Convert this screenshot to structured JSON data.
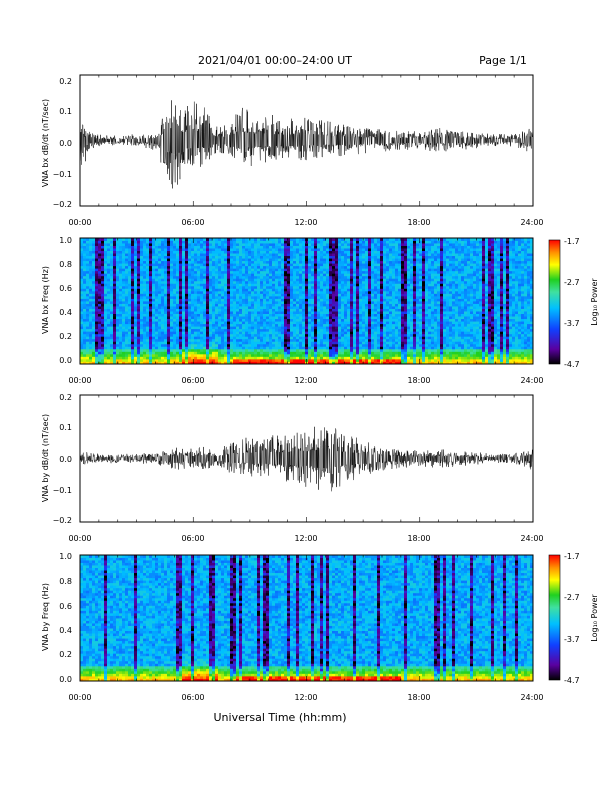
{
  "header": {
    "title": "2021/04/01  00:00–24:00 UT",
    "page": "Page 1/1"
  },
  "xaxis": {
    "label": "Universal Time (hh:mm)",
    "ticks": [
      "00:00",
      "06:00",
      "12:00",
      "18:00",
      "24:00"
    ]
  },
  "colorbar": {
    "label": "Log₁₀ Power",
    "ticks": [
      "-1.7",
      "-2.7",
      "-3.7",
      "-4.7"
    ],
    "range": [
      -4.7,
      -1.7
    ],
    "colormap": [
      "#000000",
      "#5a00a0",
      "#1040ff",
      "#00c0ff",
      "#40e0a0",
      "#20d020",
      "#ffff00",
      "#ff9000",
      "#ff0000"
    ]
  },
  "chart_data": [
    {
      "type": "line",
      "ylabel": "VNA bx dB/dt (nT/sec)",
      "xlim": [
        0,
        24
      ],
      "ylim": [
        -0.2,
        0.2
      ],
      "yticks": [
        "0.2",
        "0.1",
        "0.0",
        "−0.1",
        "−0.2"
      ],
      "envelope": {
        "x": [
          0,
          0.5,
          1,
          2,
          3,
          4,
          4.5,
          5,
          5.5,
          6,
          6.5,
          7,
          7.5,
          8,
          8.5,
          9,
          9.5,
          10,
          11,
          12,
          13,
          14,
          15,
          16,
          17,
          18,
          19,
          20,
          21,
          22,
          23,
          24
        ],
        "upper": [
          0.06,
          0.03,
          0.02,
          0.015,
          0.02,
          0.03,
          0.09,
          0.14,
          0.1,
          0.12,
          0.11,
          0.06,
          0.04,
          0.07,
          0.11,
          0.09,
          0.08,
          0.08,
          0.07,
          0.07,
          0.06,
          0.05,
          0.04,
          0.035,
          0.03,
          0.03,
          0.04,
          0.03,
          0.025,
          0.02,
          0.02,
          0.04
        ],
        "lower": [
          -0.12,
          -0.03,
          -0.02,
          -0.015,
          -0.02,
          -0.03,
          -0.1,
          -0.17,
          -0.1,
          -0.09,
          -0.08,
          -0.05,
          -0.04,
          -0.06,
          -0.1,
          -0.08,
          -0.07,
          -0.07,
          -0.06,
          -0.06,
          -0.05,
          -0.05,
          -0.04,
          -0.035,
          -0.03,
          -0.03,
          -0.035,
          -0.03,
          -0.025,
          -0.02,
          -0.02,
          -0.04
        ]
      }
    },
    {
      "type": "heatmap",
      "ylabel": "VNA bx Freq (Hz)",
      "xlim": [
        0,
        24
      ],
      "ylim": [
        0,
        1.0
      ],
      "yticks": [
        "1.0",
        "0.8",
        "0.6",
        "0.4",
        "0.2",
        "0.0"
      ],
      "z_range": [
        -4.7,
        -1.7
      ]
    },
    {
      "type": "line",
      "ylabel": "VNA by dB/dt (nT/sec)",
      "xlim": [
        0,
        24
      ],
      "ylim": [
        -0.2,
        0.2
      ],
      "yticks": [
        "0.2",
        "0.1",
        "0.0",
        "−0.1",
        "−0.2"
      ],
      "envelope": {
        "x": [
          0,
          0.5,
          1,
          2,
          3,
          4,
          4.5,
          5,
          5.5,
          6,
          6.5,
          7,
          7.5,
          8,
          8.5,
          9,
          9.5,
          10,
          11,
          12,
          13,
          14,
          15,
          16,
          17,
          18,
          19,
          20,
          21,
          22,
          23,
          24
        ],
        "upper": [
          0.02,
          0.02,
          0.015,
          0.015,
          0.015,
          0.02,
          0.03,
          0.04,
          0.035,
          0.03,
          0.04,
          0.03,
          0.03,
          0.06,
          0.06,
          0.07,
          0.07,
          0.08,
          0.08,
          0.09,
          0.12,
          0.08,
          0.06,
          0.04,
          0.03,
          0.025,
          0.03,
          0.025,
          0.02,
          0.015,
          0.015,
          0.05
        ],
        "lower": [
          -0.02,
          -0.02,
          -0.015,
          -0.015,
          -0.015,
          -0.02,
          -0.03,
          -0.04,
          -0.035,
          -0.03,
          -0.04,
          -0.03,
          -0.03,
          -0.05,
          -0.05,
          -0.06,
          -0.06,
          -0.07,
          -0.08,
          -0.09,
          -0.12,
          -0.08,
          -0.06,
          -0.04,
          -0.03,
          -0.025,
          -0.03,
          -0.025,
          -0.02,
          -0.015,
          -0.015,
          -0.04
        ]
      }
    },
    {
      "type": "heatmap",
      "ylabel": "VNA by Freq (Hz)",
      "xlim": [
        0,
        24
      ],
      "ylim": [
        0,
        1.0
      ],
      "yticks": [
        "1.0",
        "0.8",
        "0.6",
        "0.4",
        "0.2",
        "0.0"
      ],
      "z_range": [
        -4.7,
        -1.7
      ]
    }
  ]
}
